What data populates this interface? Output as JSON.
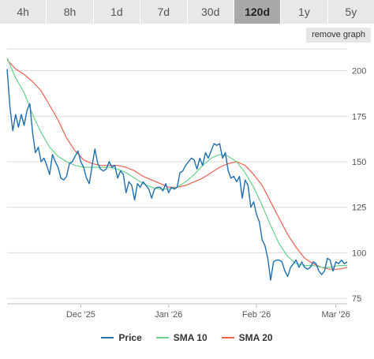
{
  "tabs": [
    {
      "label": "4h",
      "active": false
    },
    {
      "label": "8h",
      "active": false
    },
    {
      "label": "1d",
      "active": false
    },
    {
      "label": "7d",
      "active": false
    },
    {
      "label": "30d",
      "active": false
    },
    {
      "label": "120d",
      "active": true
    },
    {
      "label": "1y",
      "active": false
    },
    {
      "label": "5y",
      "active": false
    }
  ],
  "remove_graph_label": "remove graph",
  "colors": {
    "price": "#1f6fb0",
    "sma10": "#66d28c",
    "sma20": "#f0604f",
    "grid": "#d9d9d9",
    "tab_active": "#a9a9a9",
    "tab_inactive": "#e8e8e8"
  },
  "chart_data": {
    "type": "line",
    "x_axis": {
      "type": "date",
      "start": "2025-11-05",
      "end": "2026-03-05",
      "tick_labels": [
        {
          "date": "2025-12-01",
          "label": "Dec '25"
        },
        {
          "date": "2026-01-01",
          "label": "Jan '26"
        },
        {
          "date": "2026-02-01",
          "label": "Feb '26"
        },
        {
          "date": "2026-03-01",
          "label": "Mar '26"
        }
      ]
    },
    "y_axis": {
      "position": "right",
      "ylim": [
        72,
        212
      ],
      "ticks": [
        75,
        100,
        125,
        150,
        175,
        200
      ],
      "grid": true
    },
    "legend_position": "bottom-center",
    "series": [
      {
        "name": "Price",
        "color": "#1f6fb0",
        "points": [
          [
            "2025-11-05",
            201
          ],
          [
            "2025-11-06",
            180
          ],
          [
            "2025-11-07",
            167
          ],
          [
            "2025-11-08",
            176
          ],
          [
            "2025-11-09",
            169
          ],
          [
            "2025-11-10",
            176
          ],
          [
            "2025-11-11",
            170
          ],
          [
            "2025-11-12",
            178
          ],
          [
            "2025-11-13",
            182
          ],
          [
            "2025-11-14",
            166
          ],
          [
            "2025-11-15",
            155
          ],
          [
            "2025-11-16",
            158
          ],
          [
            "2025-11-17",
            150
          ],
          [
            "2025-11-18",
            152
          ],
          [
            "2025-11-19",
            148
          ],
          [
            "2025-11-20",
            143
          ],
          [
            "2025-11-21",
            154
          ],
          [
            "2025-11-22",
            150
          ],
          [
            "2025-11-23",
            147
          ],
          [
            "2025-11-24",
            141
          ],
          [
            "2025-11-25",
            140
          ],
          [
            "2025-11-26",
            142
          ],
          [
            "2025-11-27",
            149
          ],
          [
            "2025-11-28",
            150
          ],
          [
            "2025-11-29",
            153
          ],
          [
            "2025-11-30",
            156
          ],
          [
            "2025-12-01",
            150
          ],
          [
            "2025-12-02",
            147
          ],
          [
            "2025-12-03",
            141
          ],
          [
            "2025-12-04",
            138
          ],
          [
            "2025-12-05",
            148
          ],
          [
            "2025-12-06",
            157
          ],
          [
            "2025-12-07",
            149
          ],
          [
            "2025-12-08",
            146
          ],
          [
            "2025-12-09",
            145
          ],
          [
            "2025-12-10",
            146
          ],
          [
            "2025-12-11",
            150
          ],
          [
            "2025-12-12",
            147
          ],
          [
            "2025-12-13",
            148
          ],
          [
            "2025-12-14",
            141
          ],
          [
            "2025-12-15",
            145
          ],
          [
            "2025-12-16",
            143
          ],
          [
            "2025-12-17",
            133
          ],
          [
            "2025-12-18",
            139
          ],
          [
            "2025-12-19",
            137
          ],
          [
            "2025-12-20",
            129
          ],
          [
            "2025-12-21",
            138
          ],
          [
            "2025-12-22",
            136
          ],
          [
            "2025-12-23",
            139
          ],
          [
            "2025-12-24",
            137
          ],
          [
            "2025-12-25",
            135
          ],
          [
            "2025-12-26",
            130
          ],
          [
            "2025-12-27",
            135
          ],
          [
            "2025-12-28",
            136
          ],
          [
            "2025-12-29",
            136
          ],
          [
            "2025-12-30",
            134
          ],
          [
            "2025-12-31",
            138
          ],
          [
            "2026-01-01",
            133
          ],
          [
            "2026-01-02",
            136
          ],
          [
            "2026-01-03",
            135
          ],
          [
            "2026-01-04",
            136
          ],
          [
            "2026-01-05",
            144
          ],
          [
            "2026-01-06",
            145
          ],
          [
            "2026-01-07",
            148
          ],
          [
            "2026-01-08",
            150
          ],
          [
            "2026-01-09",
            152
          ],
          [
            "2026-01-10",
            151
          ],
          [
            "2026-01-11",
            146
          ],
          [
            "2026-01-12",
            152
          ],
          [
            "2026-01-13",
            148
          ],
          [
            "2026-01-14",
            155
          ],
          [
            "2026-01-15",
            152
          ],
          [
            "2026-01-16",
            156
          ],
          [
            "2026-01-17",
            160
          ],
          [
            "2026-01-18",
            159
          ],
          [
            "2026-01-19",
            160
          ],
          [
            "2026-01-20",
            152
          ],
          [
            "2026-01-21",
            155
          ],
          [
            "2026-01-22",
            145
          ],
          [
            "2026-01-23",
            141
          ],
          [
            "2026-01-24",
            142
          ],
          [
            "2026-01-25",
            139
          ],
          [
            "2026-01-26",
            142
          ],
          [
            "2026-01-27",
            130
          ],
          [
            "2026-01-28",
            140
          ],
          [
            "2026-01-29",
            137
          ],
          [
            "2026-01-30",
            125
          ],
          [
            "2026-01-31",
            128
          ],
          [
            "2026-02-01",
            121
          ],
          [
            "2026-02-02",
            117
          ],
          [
            "2026-02-03",
            107
          ],
          [
            "2026-02-04",
            104
          ],
          [
            "2026-02-05",
            97
          ],
          [
            "2026-02-06",
            85
          ],
          [
            "2026-02-07",
            95
          ],
          [
            "2026-02-08",
            96
          ],
          [
            "2026-02-09",
            96
          ],
          [
            "2026-02-10",
            95
          ],
          [
            "2026-02-11",
            90
          ],
          [
            "2026-02-12",
            87
          ],
          [
            "2026-02-13",
            92
          ],
          [
            "2026-02-14",
            94
          ],
          [
            "2026-02-15",
            96
          ],
          [
            "2026-02-16",
            92
          ],
          [
            "2026-02-17",
            95
          ],
          [
            "2026-02-18",
            92
          ],
          [
            "2026-02-19",
            91
          ],
          [
            "2026-02-20",
            92
          ],
          [
            "2026-02-21",
            95
          ],
          [
            "2026-02-22",
            94
          ],
          [
            "2026-02-23",
            90
          ],
          [
            "2026-02-24",
            88
          ],
          [
            "2026-02-25",
            90
          ],
          [
            "2026-02-26",
            97
          ],
          [
            "2026-02-27",
            96
          ],
          [
            "2026-02-28",
            90
          ],
          [
            "2026-03-01",
            95
          ],
          [
            "2026-03-02",
            94
          ],
          [
            "2026-03-03",
            96
          ],
          [
            "2026-03-04",
            94
          ],
          [
            "2026-03-05",
            95
          ]
        ]
      },
      {
        "name": "SMA 10",
        "color": "#66d28c",
        "points": [
          [
            "2025-11-05",
            207
          ],
          [
            "2025-11-08",
            196
          ],
          [
            "2025-11-11",
            188
          ],
          [
            "2025-11-14",
            176
          ],
          [
            "2025-11-17",
            166
          ],
          [
            "2025-11-20",
            158
          ],
          [
            "2025-11-23",
            153
          ],
          [
            "2025-11-26",
            150
          ],
          [
            "2025-11-29",
            148
          ],
          [
            "2025-12-02",
            147
          ],
          [
            "2025-12-05",
            147
          ],
          [
            "2025-12-08",
            147
          ],
          [
            "2025-12-11",
            147
          ],
          [
            "2025-12-14",
            146
          ],
          [
            "2025-12-17",
            144
          ],
          [
            "2025-12-20",
            141
          ],
          [
            "2025-12-23",
            138
          ],
          [
            "2025-12-26",
            136
          ],
          [
            "2025-12-29",
            135
          ],
          [
            "2026-01-01",
            135
          ],
          [
            "2026-01-04",
            136
          ],
          [
            "2026-01-07",
            139
          ],
          [
            "2026-01-10",
            143
          ],
          [
            "2026-01-13",
            148
          ],
          [
            "2026-01-16",
            152
          ],
          [
            "2026-01-19",
            154
          ],
          [
            "2026-01-22",
            153
          ],
          [
            "2026-01-25",
            150
          ],
          [
            "2026-01-28",
            144
          ],
          [
            "2026-01-31",
            136
          ],
          [
            "2026-02-03",
            126
          ],
          [
            "2026-02-06",
            115
          ],
          [
            "2026-02-09",
            105
          ],
          [
            "2026-02-12",
            98
          ],
          [
            "2026-02-15",
            94
          ],
          [
            "2026-02-18",
            93
          ],
          [
            "2026-02-21",
            93
          ],
          [
            "2026-02-24",
            92
          ],
          [
            "2026-02-27",
            92
          ],
          [
            "2026-03-02",
            93
          ],
          [
            "2026-03-05",
            93
          ]
        ]
      },
      {
        "name": "SMA 20",
        "color": "#f0604f",
        "points": [
          [
            "2025-11-05",
            206
          ],
          [
            "2025-11-08",
            201
          ],
          [
            "2025-11-11",
            198
          ],
          [
            "2025-11-14",
            194
          ],
          [
            "2025-11-17",
            189
          ],
          [
            "2025-11-20",
            181
          ],
          [
            "2025-11-23",
            173
          ],
          [
            "2025-11-26",
            163
          ],
          [
            "2025-11-29",
            156
          ],
          [
            "2025-12-02",
            151
          ],
          [
            "2025-12-05",
            149
          ],
          [
            "2025-12-08",
            148
          ],
          [
            "2025-12-11",
            148
          ],
          [
            "2025-12-14",
            148
          ],
          [
            "2025-12-17",
            147
          ],
          [
            "2025-12-20",
            145
          ],
          [
            "2025-12-23",
            142
          ],
          [
            "2025-12-26",
            140
          ],
          [
            "2025-12-29",
            138
          ],
          [
            "2026-01-01",
            136
          ],
          [
            "2026-01-04",
            136
          ],
          [
            "2026-01-07",
            137
          ],
          [
            "2026-01-10",
            139
          ],
          [
            "2026-01-13",
            141
          ],
          [
            "2026-01-16",
            144
          ],
          [
            "2026-01-19",
            147
          ],
          [
            "2026-01-22",
            149
          ],
          [
            "2026-01-25",
            150
          ],
          [
            "2026-01-28",
            148
          ],
          [
            "2026-01-31",
            143
          ],
          [
            "2026-02-03",
            137
          ],
          [
            "2026-02-06",
            128
          ],
          [
            "2026-02-09",
            119
          ],
          [
            "2026-02-12",
            110
          ],
          [
            "2026-02-15",
            103
          ],
          [
            "2026-02-18",
            97
          ],
          [
            "2026-02-21",
            94
          ],
          [
            "2026-02-24",
            92
          ],
          [
            "2026-02-27",
            91
          ],
          [
            "2026-03-02",
            91
          ],
          [
            "2026-03-05",
            92
          ]
        ]
      }
    ]
  }
}
